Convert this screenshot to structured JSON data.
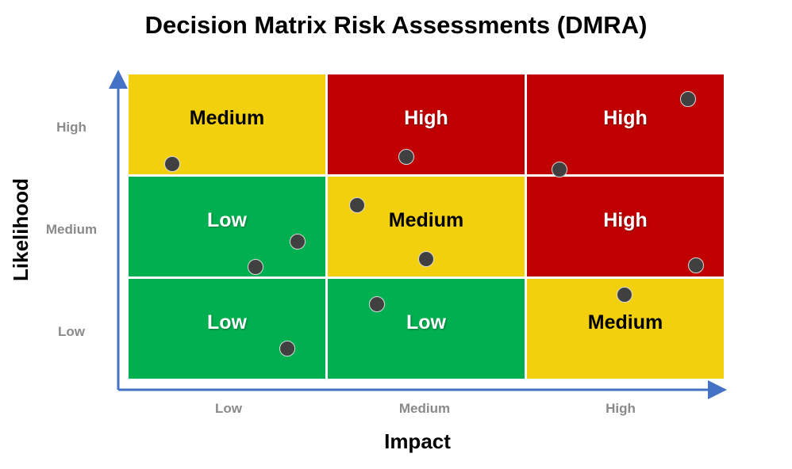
{
  "title": "Decision Matrix Risk Assessments (DMRA)",
  "y_axis": {
    "label": "Likelihood",
    "ticks": [
      "High",
      "Medium",
      "Low"
    ]
  },
  "x_axis": {
    "label": "Impact",
    "ticks": [
      "Low",
      "Medium",
      "High"
    ]
  },
  "colors": {
    "low": "#00b050",
    "medium": "#f2d00d",
    "high": "#c00000",
    "axis": "#4472c4",
    "dot": "#404040"
  },
  "matrix": [
    [
      {
        "label": "Medium",
        "level": "medium"
      },
      {
        "label": "High",
        "level": "high"
      },
      {
        "label": "High",
        "level": "high"
      }
    ],
    [
      {
        "label": "Low",
        "level": "low"
      },
      {
        "label": "Medium",
        "level": "medium"
      },
      {
        "label": "High",
        "level": "high"
      }
    ],
    [
      {
        "label": "Low",
        "level": "low"
      },
      {
        "label": "Low",
        "level": "low"
      },
      {
        "label": "Medium",
        "level": "medium"
      }
    ]
  ],
  "risk_points": [
    {
      "impact": 0.22,
      "likelihood": 2.12
    },
    {
      "impact": 1.4,
      "likelihood": 2.19
    },
    {
      "impact": 2.17,
      "likelihood": 2.07
    },
    {
      "impact": 2.82,
      "likelihood": 2.76
    },
    {
      "impact": 1.15,
      "likelihood": 1.72
    },
    {
      "impact": 0.85,
      "likelihood": 1.36
    },
    {
      "impact": 0.64,
      "likelihood": 1.11
    },
    {
      "impact": 1.5,
      "likelihood": 1.19
    },
    {
      "impact": 2.86,
      "likelihood": 1.13
    },
    {
      "impact": 1.25,
      "likelihood": 0.75
    },
    {
      "impact": 2.5,
      "likelihood": 0.84
    },
    {
      "impact": 0.8,
      "likelihood": 0.31
    }
  ]
}
